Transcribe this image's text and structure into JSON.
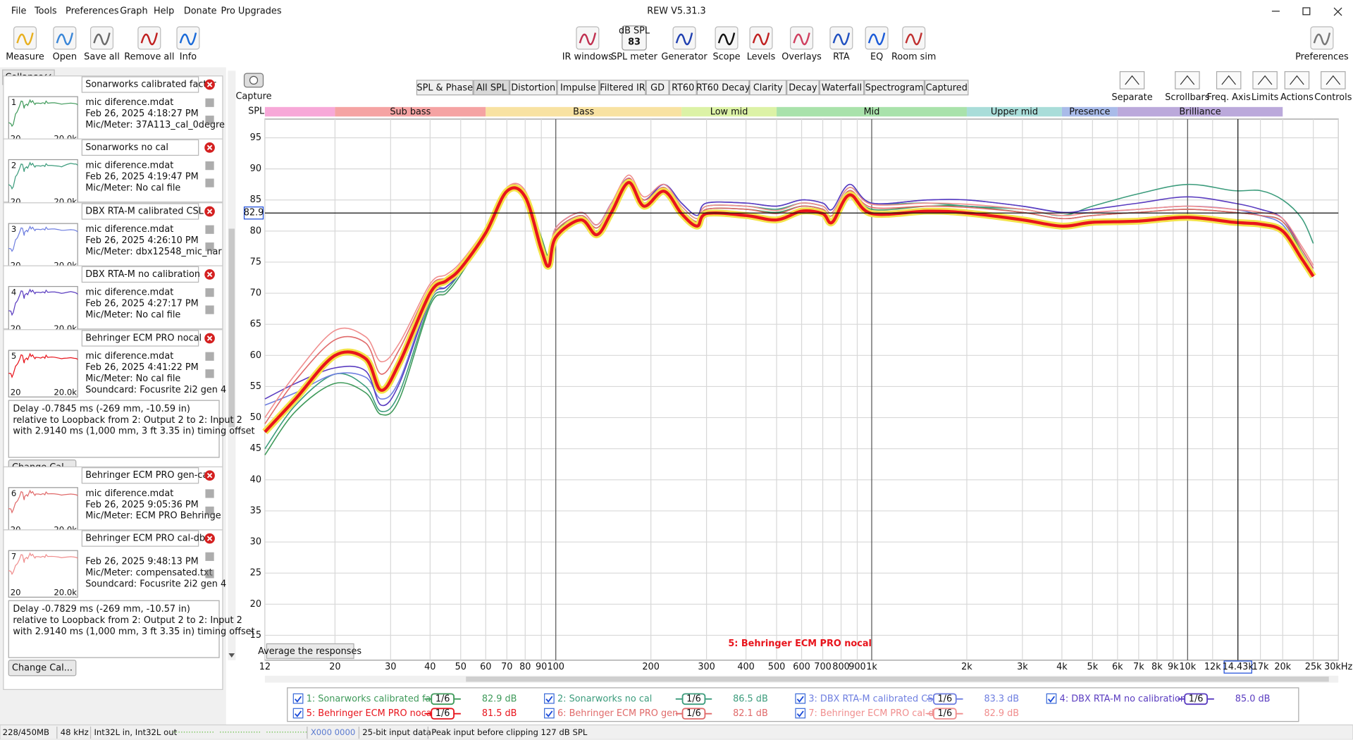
{
  "window_title": "REW V5.31.3",
  "menu": [
    "File",
    "Tools",
    "Preferences",
    "Graph",
    "Help",
    "Donate",
    "Pro Upgrades"
  ],
  "toolbar": {
    "left": [
      "Measure",
      "Open",
      "Save all",
      "Remove all",
      "Info"
    ],
    "center": [
      "IR windows",
      "SPL meter",
      "Generator",
      "Scope",
      "Levels",
      "Overlays",
      "RTA",
      "EQ",
      "Room sim"
    ],
    "spl_meter_icon": {
      "unit": "dB SPL",
      "reading": "83"
    },
    "right": [
      "Preferences"
    ]
  },
  "panel": {
    "collapse": "Collapse",
    "thumb_axis": [
      "20",
      "20.0k"
    ],
    "change_cal": "Change Cal...",
    "measurements": [
      {
        "number": "1",
        "name": "Sonarworks calibrated factor",
        "lines": [
          "mic diference.mdat",
          "Feb 26, 2025 4:18:27 PM",
          "Mic/Meter: 37A113_cal_0degre"
        ]
      },
      {
        "number": "2",
        "name": "Sonarworks no cal",
        "lines": [
          "mic diference.mdat",
          "Feb 26, 2025 4:19:47 PM",
          "Mic/Meter: No cal file"
        ]
      },
      {
        "number": "3",
        "name": "DBX RTA-M calibrated CSL",
        "lines": [
          "mic diference.mdat",
          "Feb 26, 2025 4:26:10 PM",
          "Mic/Meter: dbx12548_mic_nar"
        ]
      },
      {
        "number": "4",
        "name": "DBX RTA-M no calibration",
        "lines": [
          "mic diference.mdat",
          "Feb 26, 2025 4:27:17 PM",
          "Mic/Meter: No cal file"
        ]
      },
      {
        "number": "5",
        "name": "Behringer ECM PRO nocal",
        "lines": [
          "mic diference.mdat",
          "Feb 26, 2025 4:41:22 PM",
          "Mic/Meter: No cal file",
          "Soundcard: Focusrite 2i2 gen 4"
        ],
        "details": [
          "Delay -0.7845 ms (-269 mm, -10.59 in)",
          " relative to Loopback from 2: Output 2 to 2: Input 2",
          "with 2.9140 ms (1,000 mm, 3 ft 3.35 in) timing offset"
        ]
      },
      {
        "number": "6",
        "name": "Behringer ECM PRO gen-cal",
        "lines": [
          "mic diference.mdat",
          "Feb 26, 2025 9:05:36 PM",
          "Mic/Meter: ECM PRO Behringe"
        ]
      },
      {
        "number": "7",
        "name": "Behringer ECM PRO cal-dbx",
        "lines": [
          "Feb 26, 2025 9:48:13 PM",
          "Mic/Meter: compensated.txt",
          "Soundcard: Focusrite 2i2 gen 4"
        ],
        "details": [
          "Delay -0.7829 ms (-269 mm, -10.57 in)",
          " relative to Loopback from 2: Output 2 to 2: Input 2",
          "with 2.9140 ms (1,000 mm, 3 ft 3.35 in) timing offset"
        ]
      }
    ]
  },
  "graph": {
    "capture": "Capture",
    "tabs": [
      "SPL & Phase",
      "All SPL",
      "Distortion",
      "Impulse",
      "Filtered IR",
      "GD",
      "RT60",
      "RT60 Decay",
      "Clarity",
      "Decay",
      "Waterfall",
      "Spectrogram",
      "Captured"
    ],
    "active_tab": 1,
    "tools": [
      "Separate",
      "Scrollbars",
      "Freq. Axis",
      "Limits",
      "Actions",
      "Controls"
    ],
    "average_button": "Average the responses"
  },
  "chart_data": {
    "type": "line",
    "xscale": "log",
    "ylabel": "SPL",
    "grid": true,
    "bands": [
      {
        "name": null,
        "from": 12,
        "to": 20,
        "color": "#f7a8d8"
      },
      {
        "name": "Sub bass",
        "from": 20,
        "to": 60,
        "color": "#f5a3a3"
      },
      {
        "name": "Bass",
        "from": 60,
        "to": 250,
        "color": "#f8e2a2"
      },
      {
        "name": "Low mid",
        "from": 250,
        "to": 500,
        "color": "#dcf2a6"
      },
      {
        "name": "Mid",
        "from": 500,
        "to": 2000,
        "color": "#a9e2ab"
      },
      {
        "name": "Upper mid",
        "from": 2000,
        "to": 4000,
        "color": "#a9ddd9"
      },
      {
        "name": "Presence",
        "from": 4000,
        "to": 6000,
        "color": "#a9bbe9"
      },
      {
        "name": "Brilliance",
        "from": 6000,
        "to": 20000,
        "color": "#bba9db"
      }
    ],
    "annotation": "5: Behringer ECM PRO nocal",
    "selected_series": 4,
    "cursor": {
      "x": {
        "value": 14430,
        "label": "14.43k"
      },
      "y": 82.9
    },
    "xlim": [
      12,
      30000
    ],
    "ylim": [
      11,
      98
    ],
    "xticks": [
      12,
      20,
      30,
      40,
      50,
      60,
      70,
      80,
      90,
      100,
      200,
      300,
      400,
      500,
      600,
      700,
      800,
      900,
      {
        "value": 1000,
        "label": "1k"
      },
      {
        "value": 2000,
        "label": "2k"
      },
      {
        "value": 3000,
        "label": "3k"
      },
      {
        "value": 4000,
        "label": "4k"
      },
      {
        "value": 5000,
        "label": "5k"
      },
      {
        "value": 6000,
        "label": "6k"
      },
      {
        "value": 7000,
        "label": "7k"
      },
      {
        "value": 8000,
        "label": "8k"
      },
      {
        "value": 9000,
        "label": "9k"
      },
      {
        "value": 10000,
        "label": "10k"
      },
      {
        "value": 12000,
        "label": "12k"
      },
      {
        "value": 17000,
        "label": "17k"
      },
      {
        "value": 20000,
        "label": "20k"
      },
      {
        "value": 25000,
        "label": "25k"
      },
      {
        "value": 30000,
        "label": "30kHz"
      }
    ],
    "yticks": [
      15,
      20,
      25,
      30,
      35,
      40,
      45,
      50,
      55,
      60,
      65,
      70,
      75,
      80,
      85,
      90,
      95
    ],
    "x": [
      12,
      15,
      20,
      25,
      28,
      32,
      40,
      45,
      50,
      60,
      70,
      80,
      90,
      95,
      100,
      120,
      135,
      150,
      170,
      190,
      220,
      250,
      280,
      300,
      400,
      500,
      600,
      700,
      750,
      850,
      1000,
      1500,
      2000,
      3000,
      4000,
      5000,
      7000,
      10000,
      14000,
      17000,
      20000,
      23000,
      25000
    ],
    "series": [
      {
        "name": "1: Sonarworks calibrated facto",
        "color": "#3f9a5a",
        "smoothing": "1/6",
        "level": "82.9 dB",
        "values": [
          44,
          51,
          55.5,
          54,
          50.5,
          53,
          68,
          70,
          73,
          79.5,
          86.5,
          86,
          79,
          76,
          80,
          82,
          80,
          83.5,
          88,
          84.5,
          87,
          83.5,
          81.5,
          83.5,
          83.5,
          83,
          84,
          83.5,
          82.5,
          86.5,
          83.5,
          84,
          84,
          83,
          82,
          82.5,
          83,
          83.5,
          83,
          82.5,
          81.5,
          76.5,
          73.5
        ]
      },
      {
        "name": "2: Sonarworks no cal",
        "color": "#3c9c7c",
        "smoothing": "1/6",
        "level": "86.5 dB",
        "values": [
          45,
          52,
          57,
          55,
          51,
          54,
          68.5,
          70.5,
          73.5,
          80,
          86.5,
          86,
          78.5,
          75.5,
          80,
          82.5,
          80.5,
          84,
          88.5,
          85,
          87.5,
          84,
          82,
          84,
          84,
          83.5,
          84.5,
          84,
          83,
          87,
          84.5,
          84.5,
          84,
          83.5,
          82.5,
          84,
          86,
          87.5,
          86.5,
          86.5,
          85,
          82,
          78
        ]
      },
      {
        "name": "3: DBX RTA-M calibrated CSL",
        "color": "#6f7fe0",
        "smoothing": "1/6",
        "level": "83.3 dB",
        "values": [
          52,
          54,
          57,
          56.5,
          53,
          56,
          69.5,
          71,
          73.5,
          80,
          86.5,
          86,
          78.5,
          75.5,
          80.5,
          83,
          81,
          84.5,
          88.5,
          85,
          87.5,
          84.5,
          82.5,
          84.5,
          84.5,
          84,
          85,
          84.5,
          83.5,
          87.5,
          84.5,
          85,
          85,
          84,
          83,
          83,
          83.5,
          84,
          83.5,
          82.5,
          81,
          76,
          73
        ]
      },
      {
        "name": "4: DBX RTA-M no calibration",
        "color": "#5a3cc0",
        "smoothing": "1/6",
        "level": "85.0 dB",
        "values": [
          53,
          55.5,
          58,
          57.5,
          52,
          55.5,
          69,
          71,
          73.5,
          80,
          86.5,
          86,
          78.5,
          75.5,
          80.5,
          83,
          81,
          84.5,
          88.5,
          85,
          87.5,
          84.5,
          82.5,
          84.5,
          84.5,
          84,
          85,
          84.5,
          83.5,
          87.5,
          84.5,
          85,
          85,
          84,
          83,
          83.5,
          84.5,
          85.5,
          84.5,
          83.5,
          82,
          77,
          74
        ]
      },
      {
        "name": "5: Behringer ECM PRO nocal",
        "color": "#e8141c",
        "smoothing": "1/6",
        "level": "81.5 dB",
        "values": [
          47.7,
          53,
          60,
          59.5,
          54.4,
          58.8,
          70,
          72,
          74,
          79.7,
          86.4,
          85.5,
          77,
          74.4,
          79,
          81.8,
          79.4,
          83,
          87.8,
          84,
          86.4,
          82.8,
          80.8,
          82.8,
          82.5,
          81.8,
          83.2,
          82.8,
          81.4,
          85.8,
          82.8,
          83.2,
          82.9,
          81.8,
          80.8,
          81.4,
          81.6,
          82.2,
          81.4,
          81.1,
          80,
          75.5,
          72.7
        ]
      },
      {
        "name": "6: Behringer ECM PRO gen-cal",
        "color": "#e06a6a",
        "smoothing": "1/6",
        "level": "82.1 dB",
        "values": [
          49,
          56,
          62.5,
          62,
          57,
          61,
          71,
          72.5,
          74.5,
          80,
          87,
          86,
          78,
          75,
          80,
          82.5,
          80.5,
          84,
          88.5,
          85,
          87,
          83.5,
          81.5,
          83.5,
          83.5,
          82.8,
          84,
          83.5,
          82.5,
          86.5,
          83.8,
          84,
          83.8,
          83,
          82,
          82.5,
          83,
          83.5,
          83,
          82.5,
          81.5,
          77,
          74
        ]
      },
      {
        "name": "7: Behringer ECM PRO cal-dbx",
        "color": "#f08e8e",
        "smoothing": "1/6",
        "level": "82.9 dB",
        "values": [
          50,
          57,
          64,
          63,
          59,
          62,
          71.5,
          73,
          75,
          80.5,
          87,
          86.5,
          78.5,
          75.5,
          80.5,
          83,
          81,
          84.5,
          89,
          85.5,
          87.5,
          84,
          82,
          84,
          84,
          83.3,
          84.5,
          84,
          83,
          87,
          84.3,
          84.5,
          84.3,
          83.5,
          82.5,
          83,
          83.5,
          84,
          83.5,
          83,
          82,
          77.5,
          74.5
        ]
      }
    ]
  },
  "status_bar": [
    "228/450MB",
    "48 kHz",
    "Int32L in, Int32L out",
    "X000 0000",
    "25-bit input data",
    "Peak input before clipping 127 dB SPL"
  ]
}
